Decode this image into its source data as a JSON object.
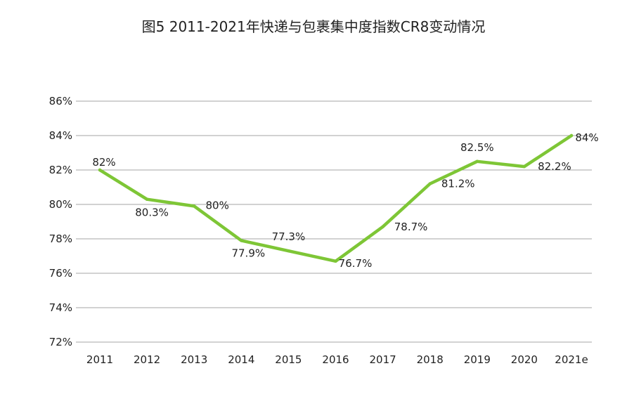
{
  "chart_data": {
    "type": "line",
    "title": "图5 2011-2021年快递与包裹集中度指数CR8变动情况",
    "categories": [
      "2011",
      "2012",
      "2013",
      "2014",
      "2015",
      "2016",
      "2017",
      "2018",
      "2019",
      "2020",
      "2021e"
    ],
    "series": [
      {
        "name": "CR8",
        "values": [
          82.0,
          80.3,
          79.9,
          77.9,
          77.3,
          76.7,
          78.7,
          81.2,
          82.5,
          82.2,
          84.0
        ]
      }
    ],
    "data_labels": [
      "82%",
      "80.3%",
      "80%",
      "77.9%",
      "77.3%",
      "76.7%",
      "78.7%",
      "81.2%",
      "82.5%",
      "82.2%",
      "84%"
    ],
    "y_ticks": [
      "72%",
      "74%",
      "76%",
      "78%",
      "80%",
      "82%",
      "84%",
      "86%"
    ],
    "ylim": [
      72,
      86
    ],
    "grid": true,
    "legend": "none",
    "line_color": "#7ec636",
    "grid_color": "#a6a6a6",
    "xlabel": "",
    "ylabel": ""
  }
}
